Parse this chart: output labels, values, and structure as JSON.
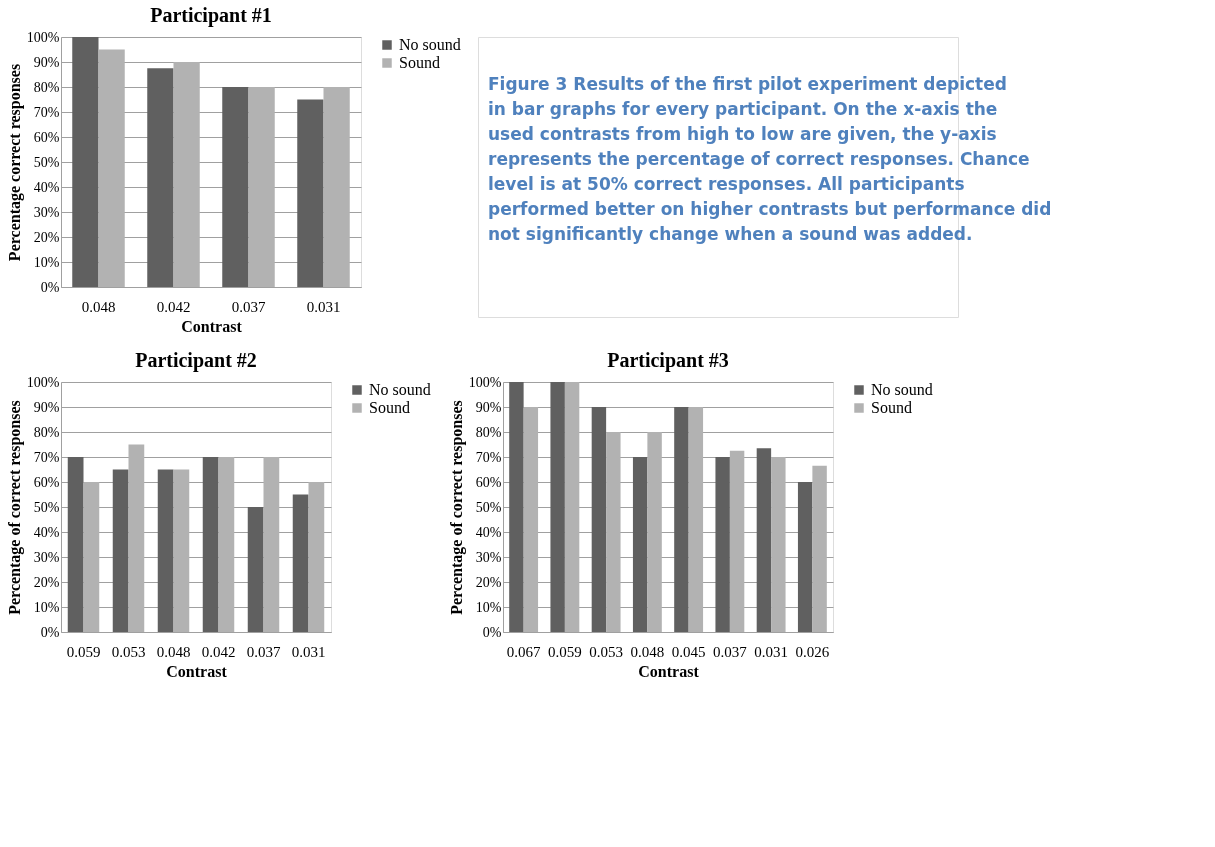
{
  "chart_data": [
    {
      "type": "bar",
      "title": "Participant #1",
      "xlabel": "Contrast",
      "ylabel": "Percentage correct responses",
      "categories": [
        "0.048",
        "0.042",
        "0.037",
        "0.031"
      ],
      "series": [
        {
          "name": "No sound",
          "color": "#606060",
          "values": [
            100,
            87.5,
            80,
            75
          ]
        },
        {
          "name": "Sound",
          "color": "#b2b2b2",
          "values": [
            95,
            90,
            80,
            80
          ]
        }
      ],
      "ylim": [
        0,
        100
      ],
      "yticks": [
        {
          "value": 0,
          "label": "0%"
        },
        {
          "value": 10,
          "label": "10%"
        },
        {
          "value": 20,
          "label": "20%"
        },
        {
          "value": 30,
          "label": "30%"
        },
        {
          "value": 40,
          "label": "40%"
        },
        {
          "value": 50,
          "label": "50%"
        },
        {
          "value": 60,
          "label": "60%"
        },
        {
          "value": 70,
          "label": "70%"
        },
        {
          "value": 80,
          "label": "80%"
        },
        {
          "value": 90,
          "label": "90%"
        },
        {
          "value": 100,
          "label": "100%"
        }
      ],
      "grid": "y",
      "legend": "right"
    },
    {
      "type": "other",
      "annotations": [
        "Figure 3 Results of the first pilot experiment depicted in bar graphs for every participant. On the x-axis the used contrasts from high to low are given, the y-axis represents the percentage of correct responses. Chance level is at 50% correct responses. All participants performed better on higher contrasts but performance did not significantly change when a sound was added."
      ]
    },
    {
      "type": "bar",
      "title": "Participant #2",
      "xlabel": "Contrast",
      "ylabel": "Percentage of correct responses",
      "categories": [
        "0.059",
        "0.053",
        "0.048",
        "0.042",
        "0.037",
        "0.031"
      ],
      "series": [
        {
          "name": "No sound",
          "color": "#606060",
          "values": [
            70,
            65,
            65,
            70,
            50,
            55
          ]
        },
        {
          "name": "Sound",
          "color": "#b2b2b2",
          "values": [
            60,
            75,
            65,
            70,
            70,
            60
          ]
        }
      ],
      "ylim": [
        0,
        100
      ],
      "yticks": [
        {
          "value": 0,
          "label": "0%"
        },
        {
          "value": 10,
          "label": "10%"
        },
        {
          "value": 20,
          "label": "20%"
        },
        {
          "value": 30,
          "label": "30%"
        },
        {
          "value": 40,
          "label": "40%"
        },
        {
          "value": 50,
          "label": "50%"
        },
        {
          "value": 60,
          "label": "60%"
        },
        {
          "value": 70,
          "label": "70%"
        },
        {
          "value": 80,
          "label": "80%"
        },
        {
          "value": 90,
          "label": "90%"
        },
        {
          "value": 100,
          "label": "100%"
        }
      ],
      "grid": "y",
      "legend": "right"
    },
    {
      "type": "bar",
      "title": "Participant #3",
      "xlabel": "Contrast",
      "ylabel": "Percentage of correct responses",
      "categories": [
        "0.067",
        "0.059",
        "0.053",
        "0.048",
        "0.045",
        "0.037",
        "0.031",
        "0.026"
      ],
      "series": [
        {
          "name": "No sound",
          "color": "#606060",
          "values": [
            100,
            100,
            90,
            70,
            90,
            70,
            73.5,
            60
          ]
        },
        {
          "name": "Sound",
          "color": "#b2b2b2",
          "values": [
            90,
            100,
            80,
            80,
            90,
            72.5,
            70,
            66.5
          ]
        }
      ],
      "ylim": [
        0,
        100
      ],
      "yticks": [
        {
          "value": 0,
          "label": "0%"
        },
        {
          "value": 10,
          "label": "10%"
        },
        {
          "value": 20,
          "label": "20%"
        },
        {
          "value": 30,
          "label": "30%"
        },
        {
          "value": 40,
          "label": "40%"
        },
        {
          "value": 50,
          "label": "50%"
        },
        {
          "value": 60,
          "label": "60%"
        },
        {
          "value": 70,
          "label": "70%"
        },
        {
          "value": 80,
          "label": "80%"
        },
        {
          "value": 90,
          "label": "90%"
        },
        {
          "value": 100,
          "label": "100%"
        }
      ],
      "grid": "y",
      "legend": "right"
    }
  ]
}
